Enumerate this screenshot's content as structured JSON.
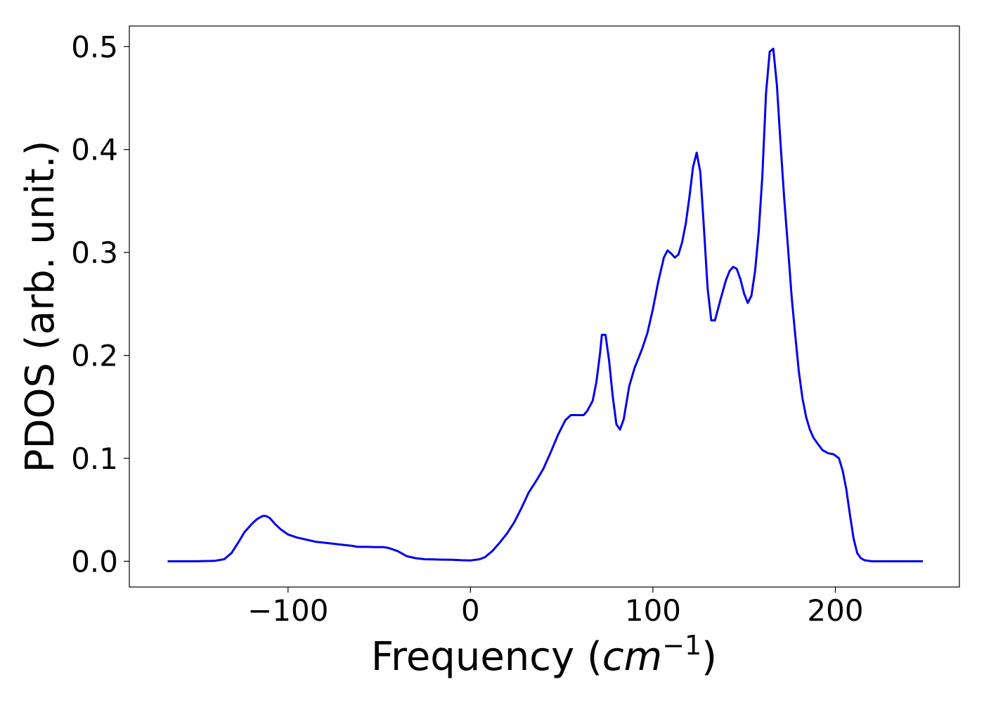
{
  "chart_data": {
    "type": "line",
    "title": "",
    "xlabel": "Frequency (",
    "xlabel_unit_base": "cm",
    "xlabel_unit_exp": "−1",
    "xlabel_close": ")",
    "ylabel": "PDOS (arb. unit.)",
    "xlim": [
      -187,
      268
    ],
    "ylim": [
      -0.025,
      0.52
    ],
    "x_ticks": [
      -100,
      0,
      100,
      200
    ],
    "x_tick_labels": [
      "−100",
      "0",
      "100",
      "200"
    ],
    "y_ticks": [
      0.0,
      0.1,
      0.2,
      0.3,
      0.4,
      0.5
    ],
    "y_tick_labels": [
      "0.0",
      "0.1",
      "0.2",
      "0.3",
      "0.4",
      "0.5"
    ],
    "grid": false,
    "series": [
      {
        "color": "#0000ee",
        "x": [
          -166,
          -150,
          -140,
          -135,
          -131,
          -127,
          -124,
          -120,
          -117,
          -114,
          -112,
          -110,
          -107,
          -104,
          -100,
          -95,
          -90,
          -85,
          -80,
          -75,
          -70,
          -65,
          -62,
          -57,
          -52,
          -48,
          -45,
          -40,
          -35,
          -30,
          -25,
          -20,
          -15,
          -10,
          -5,
          0,
          5,
          8,
          12,
          16,
          20,
          24,
          28,
          32,
          36,
          40,
          44,
          48,
          52,
          55,
          58,
          62,
          64,
          67,
          69,
          71,
          72,
          74,
          76,
          78,
          80,
          82,
          84,
          87,
          90,
          94,
          97,
          100,
          103,
          106,
          108,
          110,
          112,
          114,
          116,
          118,
          120,
          122,
          124,
          126,
          128,
          130,
          132,
          134,
          137,
          140,
          142,
          144,
          146,
          148,
          150,
          152,
          154,
          156,
          158,
          160,
          162,
          164,
          166,
          168,
          170,
          172,
          174,
          176,
          178,
          180,
          182,
          184,
          186,
          188,
          190,
          193,
          196,
          199,
          202,
          204,
          206,
          208,
          210,
          212,
          214,
          216,
          218,
          220,
          225,
          235,
          248
        ],
        "y": [
          0.0,
          0.0,
          0.0005,
          0.002,
          0.008,
          0.019,
          0.028,
          0.036,
          0.041,
          0.044,
          0.044,
          0.042,
          0.036,
          0.031,
          0.026,
          0.023,
          0.021,
          0.019,
          0.018,
          0.017,
          0.016,
          0.015,
          0.014,
          0.014,
          0.0138,
          0.0138,
          0.013,
          0.01,
          0.005,
          0.003,
          0.002,
          0.0018,
          0.0016,
          0.0014,
          0.001,
          0.0008,
          0.002,
          0.004,
          0.01,
          0.018,
          0.027,
          0.038,
          0.052,
          0.067,
          0.078,
          0.09,
          0.106,
          0.123,
          0.137,
          0.142,
          0.142,
          0.142,
          0.146,
          0.156,
          0.174,
          0.202,
          0.22,
          0.22,
          0.195,
          0.16,
          0.133,
          0.128,
          0.138,
          0.17,
          0.188,
          0.206,
          0.222,
          0.245,
          0.272,
          0.295,
          0.302,
          0.299,
          0.295,
          0.298,
          0.31,
          0.328,
          0.354,
          0.383,
          0.397,
          0.378,
          0.323,
          0.265,
          0.234,
          0.234,
          0.254,
          0.273,
          0.282,
          0.286,
          0.284,
          0.274,
          0.26,
          0.251,
          0.258,
          0.282,
          0.32,
          0.375,
          0.455,
          0.495,
          0.498,
          0.462,
          0.405,
          0.352,
          0.306,
          0.258,
          0.22,
          0.184,
          0.158,
          0.14,
          0.128,
          0.12,
          0.115,
          0.108,
          0.105,
          0.104,
          0.1,
          0.088,
          0.07,
          0.045,
          0.022,
          0.008,
          0.003,
          0.001,
          0.0005,
          0.0,
          0.0,
          0.0,
          0.0
        ]
      }
    ]
  }
}
